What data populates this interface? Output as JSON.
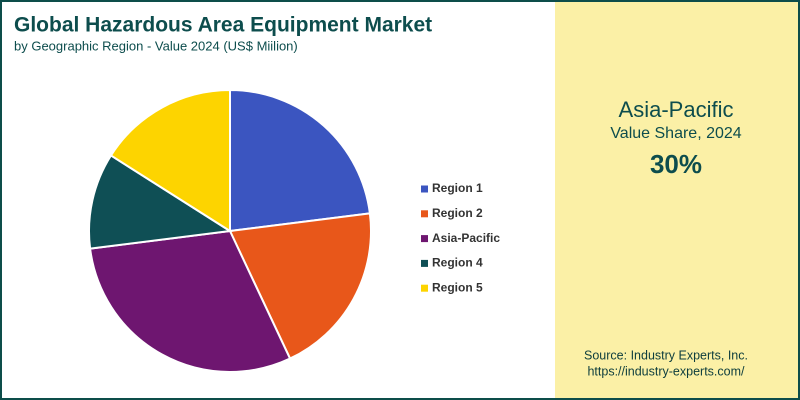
{
  "chart_data": {
    "type": "pie",
    "title": "Global Hazardous Area Equipment Market",
    "subtitle": "by Geographic Region - Value 2024 (US$ Miilion)",
    "categories": [
      "Region 1",
      "Region 2",
      "Asia-Pacific",
      "Region 4",
      "Region 5"
    ],
    "values": [
      23,
      20,
      30,
      11,
      16
    ],
    "colors": [
      "#3b55c0",
      "#e8571a",
      "#6e1670",
      "#0f4f55",
      "#fdd400"
    ],
    "highlight": {
      "category": "Asia-Pacific",
      "label": "Value Share, 2024",
      "value": 30,
      "value_label": "30%"
    },
    "source": "Source: Industry Experts, Inc.",
    "url": "https://industry-experts.com/"
  }
}
